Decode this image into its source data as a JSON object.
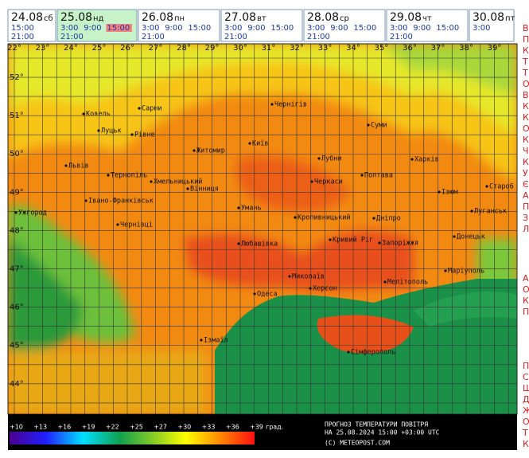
{
  "tabs": [
    {
      "date": "24.08",
      "weekday": "сб",
      "times": [
        "15:00",
        "21:00"
      ]
    },
    {
      "date": "25.08",
      "weekday": "нд",
      "times": [
        "3:00",
        "9:00",
        "15:00",
        "21:00"
      ]
    },
    {
      "date": "26.08",
      "weekday": "пн",
      "times": [
        "3:00",
        "9:00",
        "15:00",
        "21:00"
      ]
    },
    {
      "date": "27.08",
      "weekday": "вт",
      "times": [
        "3:00",
        "9:00",
        "15:00",
        "21:00"
      ]
    },
    {
      "date": "28.08",
      "weekday": "ср",
      "times": [
        "3:00",
        "9:00",
        "15:00",
        "21:00"
      ]
    },
    {
      "date": "29.08",
      "weekday": "чт",
      "times": [
        "3:00",
        "9:00",
        "15:00",
        "21:00"
      ]
    },
    {
      "date": "30.08",
      "weekday": "пт",
      "times": [
        "3:00"
      ]
    }
  ],
  "selected": {
    "tab": 1,
    "time": 2
  },
  "map": {
    "longitudes": [
      "22°",
      "23°",
      "24°",
      "25°",
      "26°",
      "27°",
      "28°",
      "29°",
      "30°",
      "31°",
      "32°",
      "33°",
      "34°",
      "35°",
      "36°",
      "37°",
      "38°",
      "39°"
    ],
    "latitudes": [
      "52°",
      "51°",
      "50°",
      "49°",
      "48°",
      "47°",
      "46°",
      "45°",
      "44°"
    ],
    "cities": [
      "Ковель",
      "Сарни",
      "Луцьк",
      "Рівне",
      "Чернігів",
      "Суми",
      "Житомир",
      "Київ",
      "Львів",
      "Тернопіль",
      "Хмельницький",
      "Вінниця",
      "Лубни",
      "Черкаси",
      "Полтава",
      "Харків",
      "Ізюм",
      "Старо6",
      "Ужгород",
      "Івано-Франківськ",
      "Чернівці",
      "Умань",
      "Кропивницький",
      "Дніпро",
      "Луганськ",
      "Любашівка",
      "Кривий Ріг",
      "Запоріжжя",
      "Донецьк",
      "Миколаїв",
      "Херсон",
      "Мелітополь",
      "Маріуполь",
      "Одеса",
      "Ізмаїл",
      "Сімферополь"
    ]
  },
  "legend": {
    "ticks": [
      "+10",
      "+13",
      "+16",
      "+19",
      "+22",
      "+25",
      "+27",
      "+30",
      "+33",
      "+36",
      "+39"
    ],
    "unit": "град.",
    "title": "ПРОГНОЗ ТЕМПЕРАТУРИ ПОВІТРЯ",
    "date_line": "НА 25.08.2024 15:00 +03:00 UTC",
    "copyright": "(C) METEOPOST.COM"
  },
  "side_letters": [
    "В",
    "П",
    "К",
    "Т",
    "Т",
    "О",
    "В",
    "К",
    "К",
    "О",
    "К",
    "Ч",
    "К",
    "У",
    "Є",
    "А",
    "П",
    "З",
    "Л",
    "А",
    "О",
    "К",
    "П",
    "П",
    "С",
    "Ш",
    "Д",
    "Ж",
    "О",
    "Т",
    "К"
  ]
}
